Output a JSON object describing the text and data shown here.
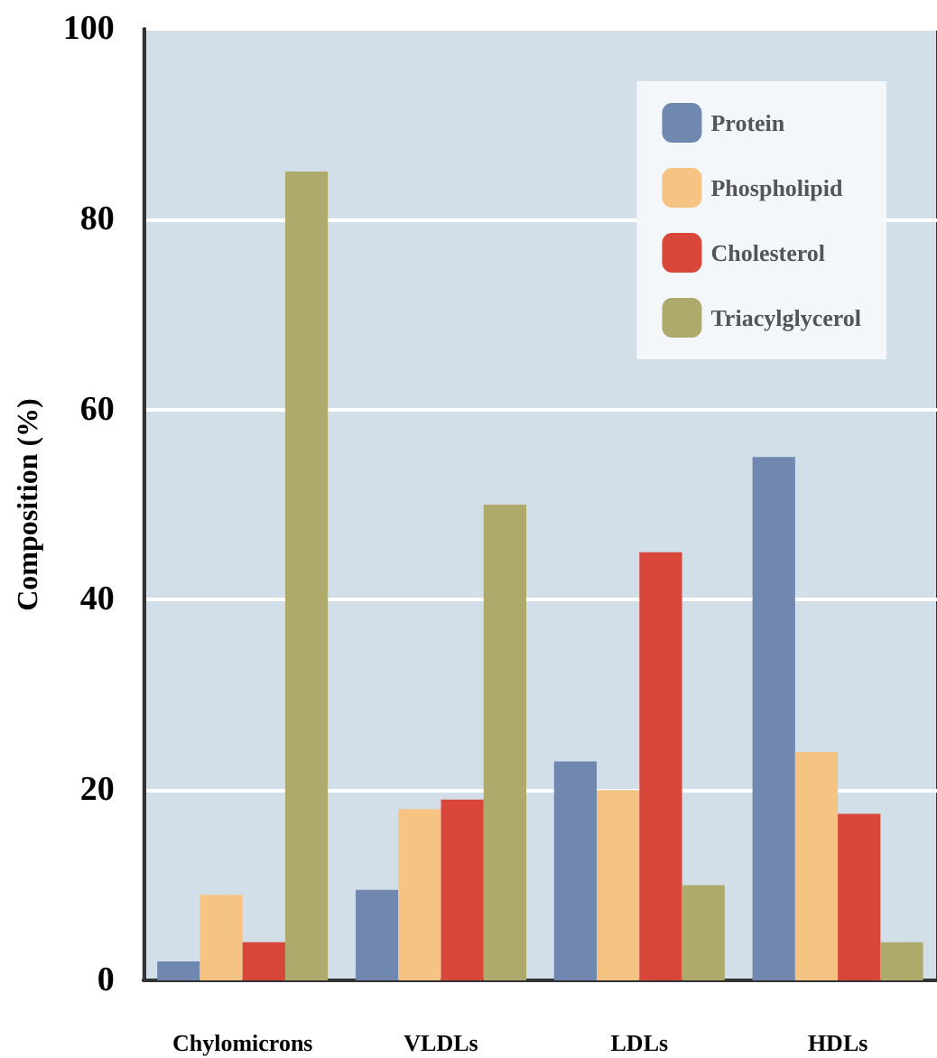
{
  "chart_data": {
    "type": "bar",
    "ylabel": "Composition (%)",
    "categories": [
      "Chylomicrons",
      "VLDLs",
      "LDLs",
      "HDLs"
    ],
    "series": [
      {
        "name": "Protein",
        "color": "#7088b0",
        "values": [
          2,
          9.5,
          23,
          55
        ]
      },
      {
        "name": "Phospholipid",
        "color": "#f5c482",
        "values": [
          9,
          18,
          20,
          24
        ]
      },
      {
        "name": "Cholesterol",
        "color": "#d9463a",
        "values": [
          4,
          19,
          45,
          17.5
        ]
      },
      {
        "name": "Triacylglycerol",
        "color": "#aeaa6c",
        "values": [
          85,
          50,
          10,
          4
        ]
      }
    ],
    "ylim": [
      0,
      100
    ],
    "yticks": [
      0,
      20,
      40,
      60,
      80,
      100
    ],
    "grid": "y",
    "legend": "top right"
  }
}
